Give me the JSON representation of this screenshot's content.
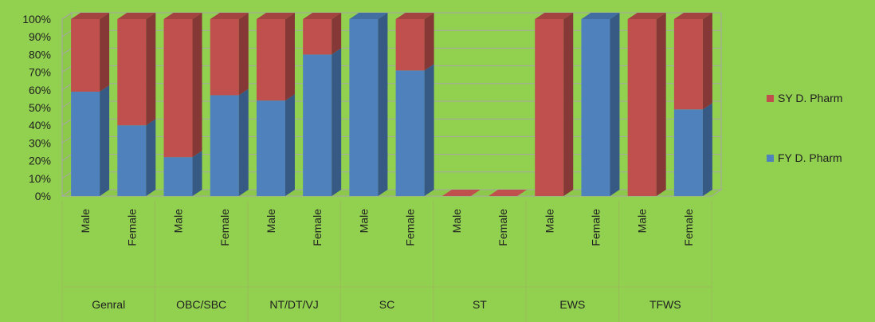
{
  "chart_data": {
    "type": "bar",
    "stacked": "percent",
    "groups": [
      {
        "name": "Genral",
        "categories": [
          "Male",
          "Female"
        ]
      },
      {
        "name": "OBC/SBC",
        "categories": [
          "Male",
          "Female"
        ]
      },
      {
        "name": "NT/DT/VJ",
        "categories": [
          "Male",
          "Female"
        ]
      },
      {
        "name": "SC",
        "categories": [
          "Male",
          "Female"
        ]
      },
      {
        "name": "ST",
        "categories": [
          "Male",
          "Female"
        ]
      },
      {
        "name": "EWS",
        "categories": [
          "Male",
          "Female"
        ]
      },
      {
        "name": "TFWS",
        "categories": [
          "Male",
          "Female"
        ]
      }
    ],
    "series": [
      {
        "name": "FY D. Pharm",
        "color": "#4f81bd",
        "values": [
          59,
          40,
          22,
          57,
          54,
          80,
          100,
          71,
          0,
          0,
          0,
          100,
          0,
          49
        ]
      },
      {
        "name": "SY D. Pharm",
        "color": "#c0504d",
        "values": [
          41,
          60,
          78,
          43,
          46,
          20,
          0,
          29,
          0,
          0,
          100,
          0,
          100,
          51
        ]
      }
    ],
    "y_ticks": [
      "0%",
      "10%",
      "20%",
      "30%",
      "40%",
      "50%",
      "60%",
      "70%",
      "80%",
      "90%",
      "100%"
    ],
    "ylim": [
      0,
      100
    ],
    "grid": true,
    "legend_position": "right"
  }
}
